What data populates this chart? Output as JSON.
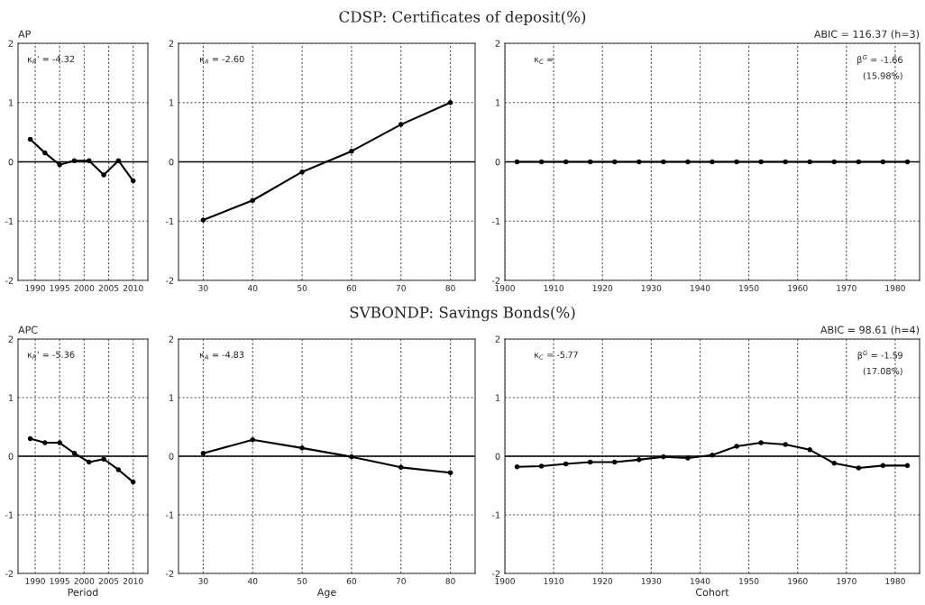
{
  "chart_data": [
    {
      "type": "line",
      "subtitle": "AP",
      "annotations": [
        "κ$_{R}$' = -4.32"
      ],
      "x": [
        1989,
        1992,
        1995,
        1998,
        2001,
        2004,
        2007,
        2010
      ],
      "series": [
        {
          "color": "#000000",
          "values": [
            0.38,
            0.15,
            -0.05,
            0.02,
            0.02,
            -0.22,
            0.02,
            -0.32
          ]
        }
      ],
      "xlim": [
        1986.5,
        2013
      ],
      "xticks": [
        1990,
        1995,
        2000,
        2005,
        2010
      ],
      "ylim": [
        -2,
        2
      ],
      "yticks": [
        -2,
        -1,
        0,
        1,
        2
      ],
      "grid": true,
      "marker": "circle",
      "line_style": "solid",
      "ref_lines": [
        {
          "axis": "y",
          "value": 0,
          "color": "#000000"
        }
      ]
    },
    {
      "type": "line",
      "title": "CDSP: Certificates of deposit(%)",
      "annotations": [
        "κ$_{A}$ = -2.60"
      ],
      "x": [
        30,
        40,
        50,
        60,
        70,
        80
      ],
      "series": [
        {
          "color": "#000000",
          "values": [
            -0.98,
            -0.65,
            -0.17,
            0.18,
            0.63,
            1.0
          ]
        }
      ],
      "xlim": [
        25,
        85
      ],
      "xticks": [
        30,
        40,
        50,
        60,
        70,
        80
      ],
      "ylim": [
        -2,
        2
      ],
      "yticks": [
        -2,
        -1,
        0,
        1,
        2
      ],
      "grid": true,
      "marker": "circle",
      "line_style": "solid",
      "ref_lines": [
        {
          "axis": "y",
          "value": 0,
          "color": "#000000"
        }
      ]
    },
    {
      "type": "line",
      "subtitle": "ABIC = 116.37 (h=3)",
      "annotations": [
        "κ$_{C}$ =",
        "β$^{G}$ = -1.66",
        "(15.98%)"
      ],
      "x": [
        1902.5,
        1907.5,
        1912.5,
        1917.5,
        1922.5,
        1927.5,
        1932.5,
        1937.5,
        1942.5,
        1947.5,
        1952.5,
        1957.5,
        1962.5,
        1967.5,
        1972.5,
        1977.5,
        1982.5
      ],
      "series": [
        {
          "color": "#000000",
          "values": [
            0,
            0,
            0,
            0,
            0,
            0,
            0,
            0,
            0,
            0,
            0,
            0,
            0,
            0,
            0,
            0,
            0
          ]
        }
      ],
      "xlim": [
        1900,
        1985
      ],
      "xticks": [
        1900,
        1910,
        1920,
        1930,
        1940,
        1950,
        1960,
        1970,
        1980
      ],
      "ylim": [
        -2,
        2
      ],
      "yticks": [
        -2,
        -1,
        0,
        1,
        2
      ],
      "grid": true,
      "marker": "circle",
      "line_style": "solid",
      "ref_lines": [
        {
          "axis": "y",
          "value": 0,
          "color": "#000000"
        }
      ]
    },
    {
      "type": "line",
      "subtitle": "APC",
      "xlabel": "Period",
      "annotations": [
        "κ$_{R}$' = -5.36"
      ],
      "x": [
        1989,
        1992,
        1995,
        1998,
        2001,
        2004,
        2007,
        2010
      ],
      "series": [
        {
          "color": "#000000",
          "values": [
            0.3,
            0.23,
            0.23,
            0.05,
            -0.1,
            -0.05,
            -0.23,
            -0.44
          ]
        }
      ],
      "xlim": [
        1986.5,
        2013
      ],
      "xticks": [
        1990,
        1995,
        2000,
        2005,
        2010
      ],
      "ylim": [
        -2,
        2
      ],
      "yticks": [
        -2,
        -1,
        0,
        1,
        2
      ],
      "grid": true,
      "marker": "circle",
      "line_style": "solid",
      "ref_lines": [
        {
          "axis": "y",
          "value": 0,
          "color": "#000000"
        }
      ]
    },
    {
      "type": "line",
      "title": "SVBONDP: Savings Bonds(%)",
      "xlabel": "Age",
      "annotations": [
        "κ$_{A}$ = -4.83"
      ],
      "x": [
        30,
        40,
        50,
        60,
        70,
        80
      ],
      "series": [
        {
          "color": "#000000",
          "values": [
            0.05,
            0.28,
            0.14,
            -0.01,
            -0.19,
            -0.28
          ]
        }
      ],
      "xlim": [
        25,
        85
      ],
      "xticks": [
        30,
        40,
        50,
        60,
        70,
        80
      ],
      "ylim": [
        -2,
        2
      ],
      "yticks": [
        -2,
        -1,
        0,
        1,
        2
      ],
      "grid": true,
      "marker": "circle",
      "line_style": "solid",
      "ref_lines": [
        {
          "axis": "y",
          "value": 0,
          "color": "#000000"
        }
      ]
    },
    {
      "type": "line",
      "subtitle": "ABIC = 98.61 (h=4)",
      "xlabel": "Cohort",
      "annotations": [
        "κ$_{C}$ = -5.77",
        "β$^{G}$ = -1.59",
        "(17.08%)"
      ],
      "x": [
        1902.5,
        1907.5,
        1912.5,
        1917.5,
        1922.5,
        1927.5,
        1932.5,
        1937.5,
        1942.5,
        1947.5,
        1952.5,
        1957.5,
        1962.5,
        1967.5,
        1972.5,
        1977.5,
        1982.5
      ],
      "series": [
        {
          "color": "#000000",
          "values": [
            -0.18,
            -0.17,
            -0.13,
            -0.1,
            -0.1,
            -0.06,
            -0.01,
            -0.03,
            0.02,
            0.17,
            0.23,
            0.2,
            0.11,
            -0.12,
            -0.2,
            -0.16,
            -0.16
          ]
        }
      ],
      "xlim": [
        1900,
        1985
      ],
      "xticks": [
        1900,
        1910,
        1920,
        1930,
        1940,
        1950,
        1960,
        1970,
        1980
      ],
      "ylim": [
        -2,
        2
      ],
      "yticks": [
        -2,
        -1,
        0,
        1,
        2
      ],
      "grid": true,
      "marker": "circle",
      "line_style": "solid",
      "ref_lines": [
        {
          "axis": "y",
          "value": 0,
          "color": "#000000"
        }
      ]
    }
  ]
}
